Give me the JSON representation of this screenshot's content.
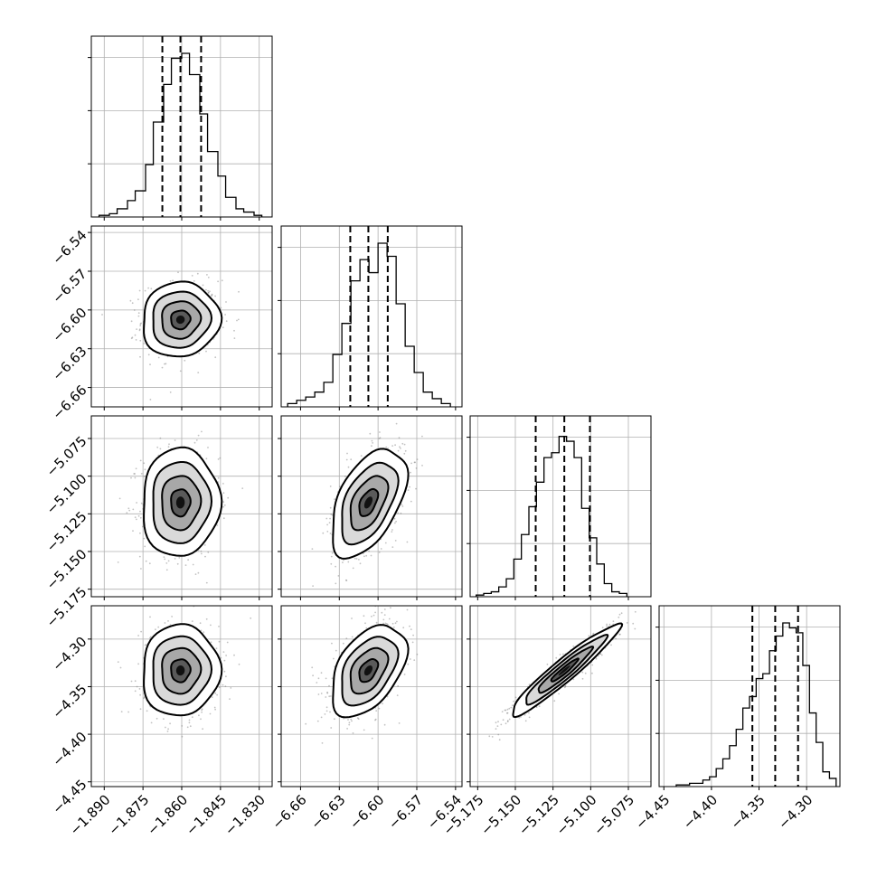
{
  "chart_data": {
    "type": "corner",
    "grid": true,
    "parameters": [
      {
        "range": [
          -1.895,
          -1.825
        ],
        "ticks": [
          -1.89,
          -1.875,
          -1.86,
          -1.845,
          -1.83
        ],
        "tick_labels": [
          "−1.890",
          "−1.875",
          "−1.860",
          "−1.845",
          "−1.830"
        ],
        "quantiles": [
          -1.8675,
          -1.8605,
          -1.8525
        ],
        "hist_edges": [
          -1.892,
          -1.888,
          -1.885,
          -1.881,
          -1.878,
          -1.874,
          -1.871,
          -1.867,
          -1.864,
          -1.86,
          -1.857,
          -1.853,
          -1.85,
          -1.846,
          -1.843,
          -1.839,
          -1.836,
          -1.832,
          -1.829
        ],
        "hist_counts": [
          0.01,
          0.02,
          0.05,
          0.1,
          0.16,
          0.32,
          0.58,
          0.81,
          0.97,
          1.0,
          0.87,
          0.63,
          0.4,
          0.25,
          0.12,
          0.05,
          0.03,
          0.01
        ]
      },
      {
        "range": [
          -6.675,
          -6.535
        ],
        "ticks": [
          -6.66,
          -6.63,
          -6.6,
          -6.57,
          -6.54
        ],
        "tick_labels": [
          "−6.66",
          "−6.63",
          "−6.60",
          "−6.57",
          "−6.54"
        ],
        "quantiles": [
          -6.6215,
          -6.6075,
          -6.5925
        ],
        "hist_edges": [
          -6.67,
          -6.663,
          -6.656,
          -6.649,
          -6.642,
          -6.635,
          -6.628,
          -6.621,
          -6.614,
          -6.607,
          -6.6,
          -6.593,
          -6.586,
          -6.579,
          -6.572,
          -6.565,
          -6.558,
          -6.551,
          -6.544
        ],
        "hist_counts": [
          0.02,
          0.04,
          0.06,
          0.09,
          0.15,
          0.32,
          0.51,
          0.77,
          0.9,
          0.82,
          1.0,
          0.92,
          0.63,
          0.37,
          0.21,
          0.09,
          0.05,
          0.02
        ]
      },
      {
        "range": [
          -5.18,
          -5.06
        ],
        "ticks": [
          -5.175,
          -5.15,
          -5.125,
          -5.1,
          -5.075
        ],
        "tick_labels": [
          "−5.175",
          "−5.150",
          "−5.125",
          "−5.100",
          "−5.075"
        ],
        "quantiles": [
          -5.1365,
          -5.1175,
          -5.1005
        ],
        "hist_edges": [
          -5.176,
          -5.171,
          -5.166,
          -5.161,
          -5.156,
          -5.151,
          -5.146,
          -5.141,
          -5.136,
          -5.131,
          -5.126,
          -5.121,
          -5.116,
          -5.111,
          -5.106,
          -5.101,
          -5.096,
          -5.091,
          -5.086,
          -5.081,
          -5.076
        ],
        "hist_counts": [
          0.01,
          0.02,
          0.03,
          0.06,
          0.11,
          0.23,
          0.38,
          0.55,
          0.7,
          0.85,
          0.88,
          0.98,
          0.95,
          0.85,
          0.54,
          0.36,
          0.2,
          0.08,
          0.03,
          0.02
        ]
      },
      {
        "range": [
          -4.455,
          -4.265
        ],
        "ticks": [
          -4.45,
          -4.4,
          -4.35,
          -4.3
        ],
        "tick_labels": [
          "−4.45",
          "−4.40",
          "−4.35",
          "−4.30"
        ],
        "quantiles": [
          -4.357,
          -4.333,
          -4.309
        ],
        "hist_edges": [
          -4.437,
          -4.43,
          -4.423,
          -4.416,
          -4.409,
          -4.402,
          -4.395,
          -4.388,
          -4.381,
          -4.374,
          -4.367,
          -4.36,
          -4.353,
          -4.346,
          -4.339,
          -4.332,
          -4.325,
          -4.318,
          -4.311,
          -4.304,
          -4.297,
          -4.29,
          -4.283,
          -4.276,
          -4.269
        ],
        "hist_counts": [
          0.01,
          0.01,
          0.02,
          0.02,
          0.04,
          0.06,
          0.11,
          0.17,
          0.25,
          0.35,
          0.48,
          0.55,
          0.66,
          0.69,
          0.83,
          0.92,
          1.0,
          0.97,
          0.94,
          0.74,
          0.45,
          0.27,
          0.09,
          0.05
        ]
      }
    ],
    "pairs": [
      {
        "row": 1,
        "col": 0,
        "correlation": 0.05
      },
      {
        "row": 2,
        "col": 0,
        "correlation": 0.03
      },
      {
        "row": 2,
        "col": 1,
        "correlation": 0.5
      },
      {
        "row": 3,
        "col": 0,
        "correlation": 0.03
      },
      {
        "row": 3,
        "col": 1,
        "correlation": 0.45
      },
      {
        "row": 3,
        "col": 2,
        "correlation": 0.95
      }
    ],
    "contour_levels_sigma": [
      0.5,
      1.0,
      1.5,
      2.0
    ]
  }
}
